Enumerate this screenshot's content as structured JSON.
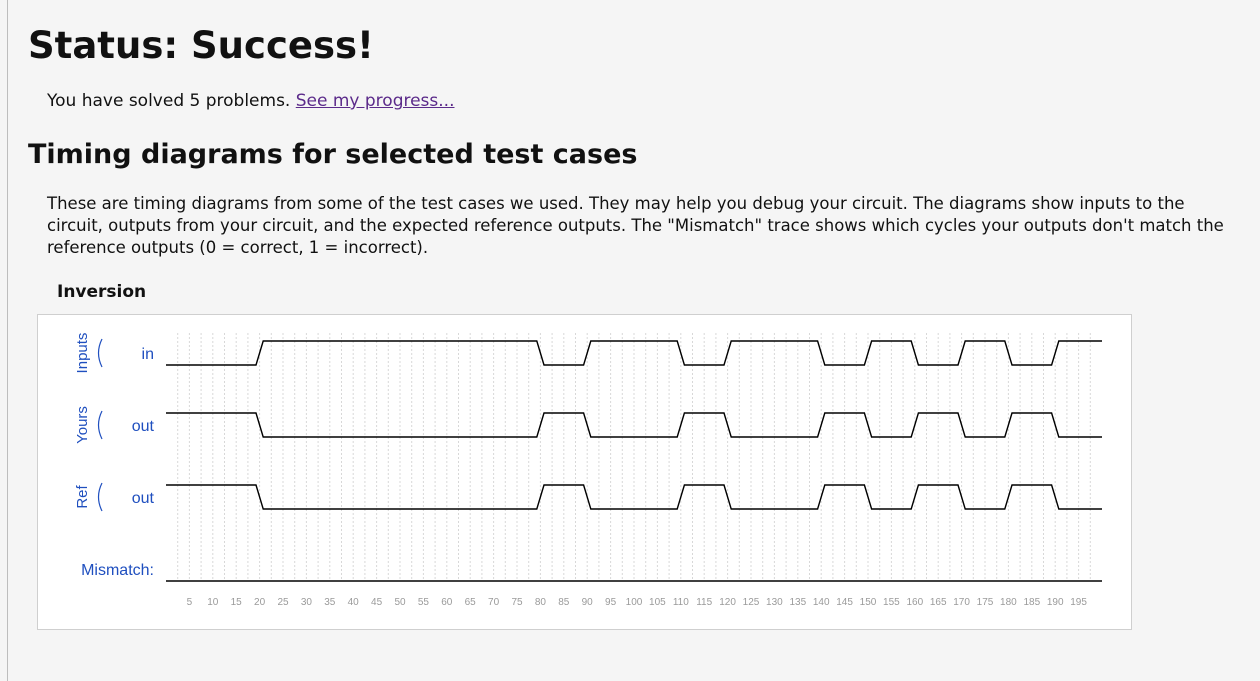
{
  "status_heading": "Status: Success!",
  "progress": {
    "text": "You have solved 5 problems.",
    "link_label": "See my progress..."
  },
  "section_heading": "Timing diagrams for selected test cases",
  "explanation": "These are timing diagrams from some of the test cases we used. They may help you debug your circuit. The diagrams show inputs to the circuit, outputs from your circuit, and the expected reference outputs. The \"Mismatch\" trace shows which cycles your outputs don't match the reference outputs (0 = correct, 1 = incorrect).",
  "diagram": {
    "title": "Inversion",
    "groups": [
      {
        "label": "Inputs",
        "signal": "in"
      },
      {
        "label": "Yours",
        "signal": "out"
      },
      {
        "label": "Ref",
        "signal": "out"
      }
    ],
    "mismatch_label": "Mismatch:",
    "colors": {
      "group_label": "#1f4fbf",
      "signal_label": "#1f4fbf",
      "wave": "#000000",
      "grid": "#d8d8d8",
      "tick_label": "#9a9a9a"
    }
  },
  "chart_data": {
    "type": "timing",
    "time_ticks": [
      5,
      10,
      15,
      20,
      25,
      30,
      35,
      40,
      45,
      50,
      55,
      60,
      65,
      70,
      75,
      80,
      85,
      90,
      95,
      100,
      105,
      110,
      115,
      120,
      125,
      130,
      135,
      140,
      145,
      150,
      155,
      160,
      165,
      170,
      175,
      180,
      185,
      190,
      195
    ],
    "time_range": [
      0,
      200
    ],
    "traces": [
      {
        "name": "in",
        "group": "Inputs",
        "segments": [
          [
            0,
            20,
            0
          ],
          [
            20,
            80,
            1
          ],
          [
            80,
            90,
            0
          ],
          [
            90,
            110,
            1
          ],
          [
            110,
            120,
            0
          ],
          [
            120,
            140,
            1
          ],
          [
            140,
            150,
            0
          ],
          [
            150,
            160,
            1
          ],
          [
            160,
            170,
            0
          ],
          [
            170,
            180,
            1
          ],
          [
            180,
            190,
            0
          ],
          [
            190,
            200,
            1
          ]
        ]
      },
      {
        "name": "out",
        "group": "Yours",
        "segments": [
          [
            0,
            20,
            1
          ],
          [
            20,
            80,
            0
          ],
          [
            80,
            90,
            1
          ],
          [
            90,
            110,
            0
          ],
          [
            110,
            120,
            1
          ],
          [
            120,
            140,
            0
          ],
          [
            140,
            150,
            1
          ],
          [
            150,
            160,
            0
          ],
          [
            160,
            170,
            1
          ],
          [
            170,
            180,
            0
          ],
          [
            180,
            190,
            1
          ],
          [
            190,
            200,
            0
          ]
        ]
      },
      {
        "name": "out",
        "group": "Ref",
        "segments": [
          [
            0,
            20,
            1
          ],
          [
            20,
            80,
            0
          ],
          [
            80,
            90,
            1
          ],
          [
            90,
            110,
            0
          ],
          [
            110,
            120,
            1
          ],
          [
            120,
            140,
            0
          ],
          [
            140,
            150,
            1
          ],
          [
            150,
            160,
            0
          ],
          [
            160,
            170,
            1
          ],
          [
            170,
            180,
            0
          ],
          [
            180,
            190,
            1
          ],
          [
            190,
            200,
            0
          ]
        ]
      },
      {
        "name": "Mismatch",
        "group": "",
        "segments": [
          [
            0,
            200,
            0
          ]
        ]
      }
    ]
  }
}
